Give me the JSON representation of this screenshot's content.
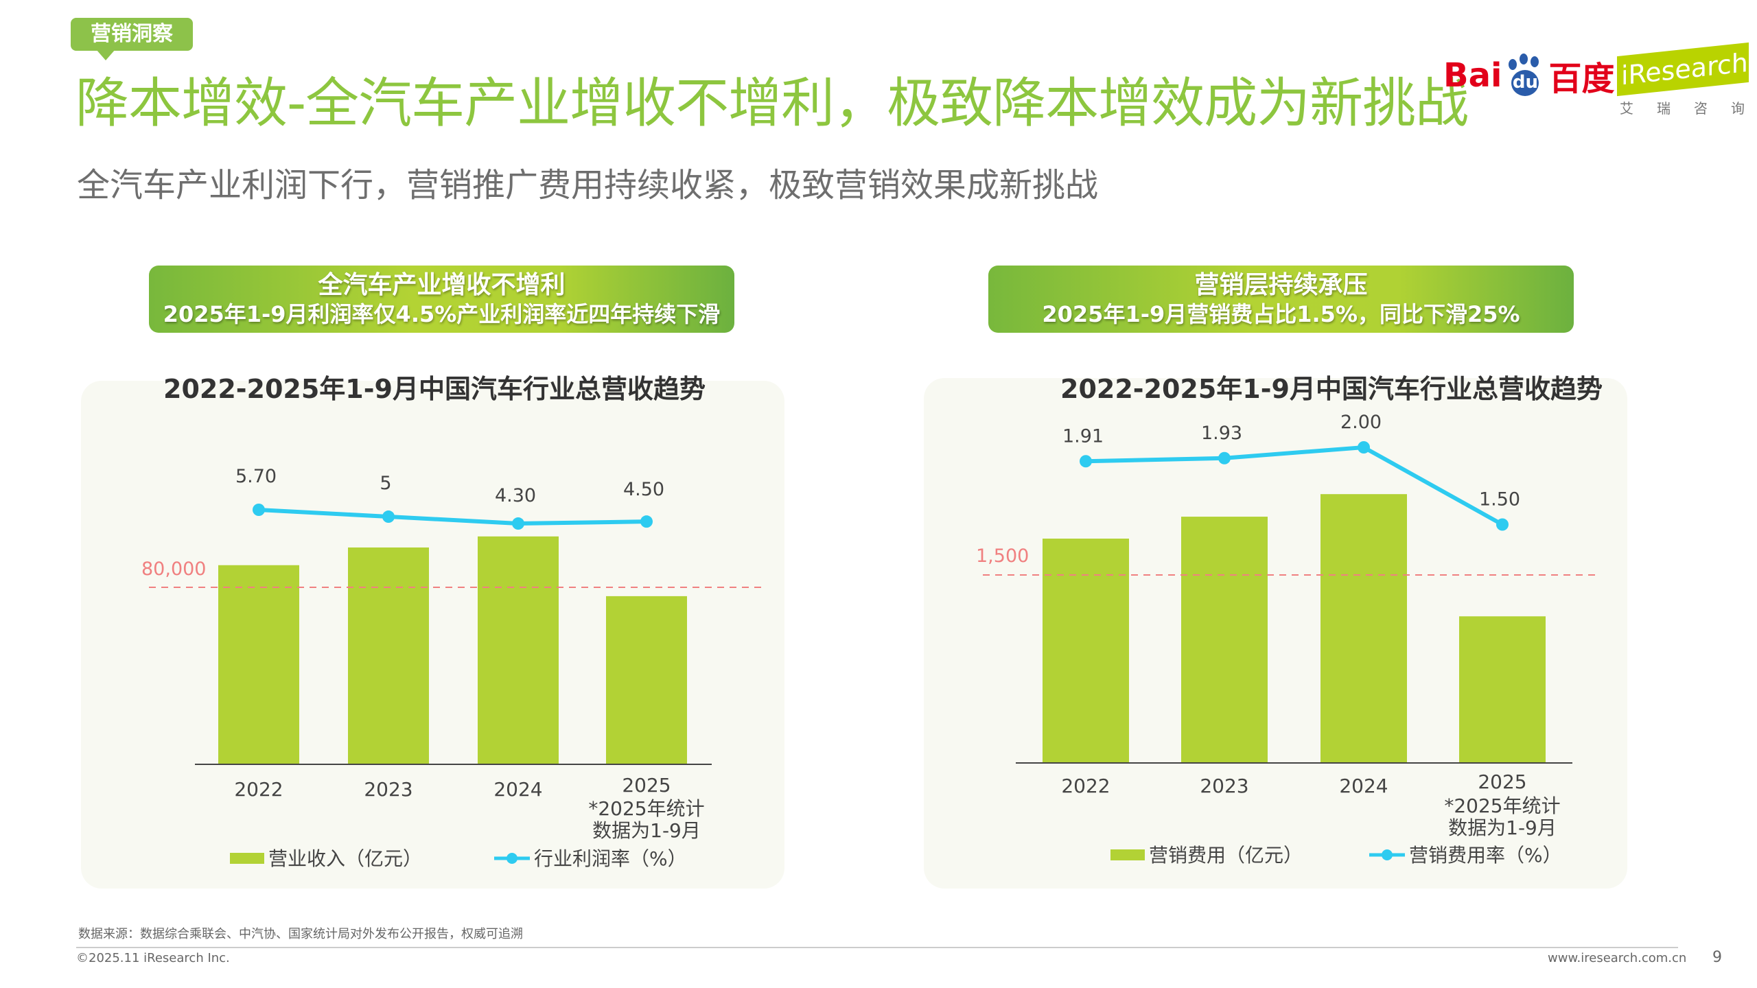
{
  "tag": "营销洞察",
  "title": "降本增效-全汽车产业增收不增利，极致降本增效成为新挑战",
  "subtitle": "全汽车产业利润下行，营销推广费用持续收紧，极致营销效果成新挑战",
  "logos": {
    "baidu_left": "Bai",
    "baidu_paw": "du",
    "baidu_right": "百度",
    "iresearch": "iResearch",
    "iresearch_cn": "艾瑞咨询"
  },
  "colors": {
    "title": "#8dc63f",
    "bar": "#b2d235",
    "line": "#2ecbf0",
    "reference": "#f08080"
  },
  "panels": [
    {
      "banner_line1": "全汽车产业增收不增利",
      "banner_line2": "2025年1-9月利润率仅4.5%产业利润率近四年持续下滑"
    },
    {
      "banner_line1": "营销层持续承压",
      "banner_line2": "2025年1-9月营销费占比1.5%，同比下滑25%"
    }
  ],
  "chart_data": [
    {
      "type": "bar+line",
      "title": "2022-2025年1-9月中国汽车行业总营收趋势",
      "categories": [
        "2022",
        "2023",
        "2024",
        "2025"
      ],
      "category_note": "*2025年统计数据为1-9月",
      "category_note_lines": [
        "*2025年统计",
        "数据为1-9月"
      ],
      "reference_line": {
        "value": 80000,
        "label": "80,000"
      },
      "series": [
        {
          "name": "营业收入（亿元）",
          "type": "bar",
          "values": [
            90000,
            98000,
            103000,
            76000
          ]
        },
        {
          "name": "行业利润率（%）",
          "type": "line",
          "values": [
            5.7,
            5,
            4.3,
            4.5
          ],
          "labels": [
            "5.70",
            "5",
            "4.30",
            "4.50"
          ]
        }
      ],
      "legend": "bottom"
    },
    {
      "type": "bar+line",
      "title": "2022-2025年1-9月中国汽车行业总营收趋势",
      "categories": [
        "2022",
        "2023",
        "2024",
        "2025"
      ],
      "category_note": "*2025年统计数据为1-9月",
      "category_note_lines": [
        "*2025年统计",
        "数据为1-9月"
      ],
      "reference_line": {
        "value": 1500,
        "label": "1,500"
      },
      "series": [
        {
          "name": "营销费用（亿元）",
          "type": "bar",
          "values": [
            1790,
            1965,
            2145,
            1170
          ]
        },
        {
          "name": "营销费用率（%）",
          "type": "line",
          "values": [
            1.91,
            1.93,
            2.0,
            1.5
          ],
          "labels": [
            "1.91",
            "1.93",
            "2.00",
            "1.50"
          ]
        }
      ],
      "legend": "bottom"
    }
  ],
  "footer": {
    "source": "数据来源：数据综合乘联会、中汽协、国家统计局对外发布公开报告，权威可追溯",
    "copyright": "©2025.11 iResearch Inc.",
    "url": "www.iresearch.com.cn",
    "page": "9"
  }
}
